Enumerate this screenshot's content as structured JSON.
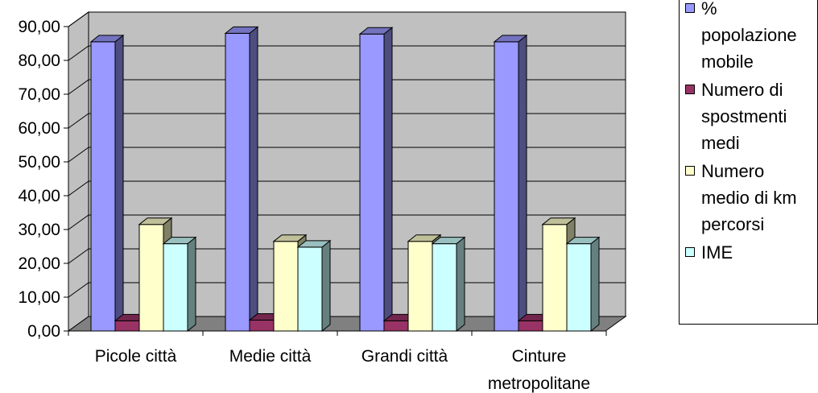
{
  "chart_data": {
    "type": "bar",
    "categories": [
      "Picole città",
      "Medie città",
      "Grandi città",
      "Cinture metropolitane"
    ],
    "category_lines": [
      [
        "Picole città"
      ],
      [
        "Medie città"
      ],
      [
        "Grandi città"
      ],
      [
        "Cinture",
        "metropolitane"
      ]
    ],
    "series": [
      {
        "name": "% popolazione mobile",
        "color": "#9999FF",
        "values": [
          85.5,
          88.0,
          87.8,
          85.5
        ]
      },
      {
        "name": "Numero di spostmenti medi",
        "color": "#993366",
        "values": [
          3.0,
          3.2,
          3.0,
          3.0
        ]
      },
      {
        "name": "Numero medio di km percorsi",
        "color": "#FFFFCC",
        "values": [
          31.5,
          26.5,
          26.5,
          31.5
        ]
      },
      {
        "name": "IME",
        "color": "#CCFFFF",
        "values": [
          25.8,
          24.8,
          25.8,
          25.8
        ]
      }
    ],
    "ylim": [
      0,
      90
    ],
    "yticks": [
      "0,00",
      "10,00",
      "20,00",
      "30,00",
      "40,00",
      "50,00",
      "60,00",
      "70,00",
      "80,00",
      "90,00"
    ],
    "grid": true,
    "legend_position": "right",
    "wall_color": "#C0C0C0",
    "floor_color": "#808080"
  },
  "legend": {
    "items": [
      {
        "lines": [
          "%",
          "popolazione",
          "mobile"
        ],
        "color": "#9999FF"
      },
      {
        "lines": [
          "Numero di",
          "spostmenti",
          "medi"
        ],
        "color": "#993366"
      },
      {
        "lines": [
          "Numero",
          "medio di km",
          "percorsi"
        ],
        "color": "#FFFFCC"
      },
      {
        "lines": [
          "IME"
        ],
        "color": "#CCFFFF"
      }
    ]
  }
}
